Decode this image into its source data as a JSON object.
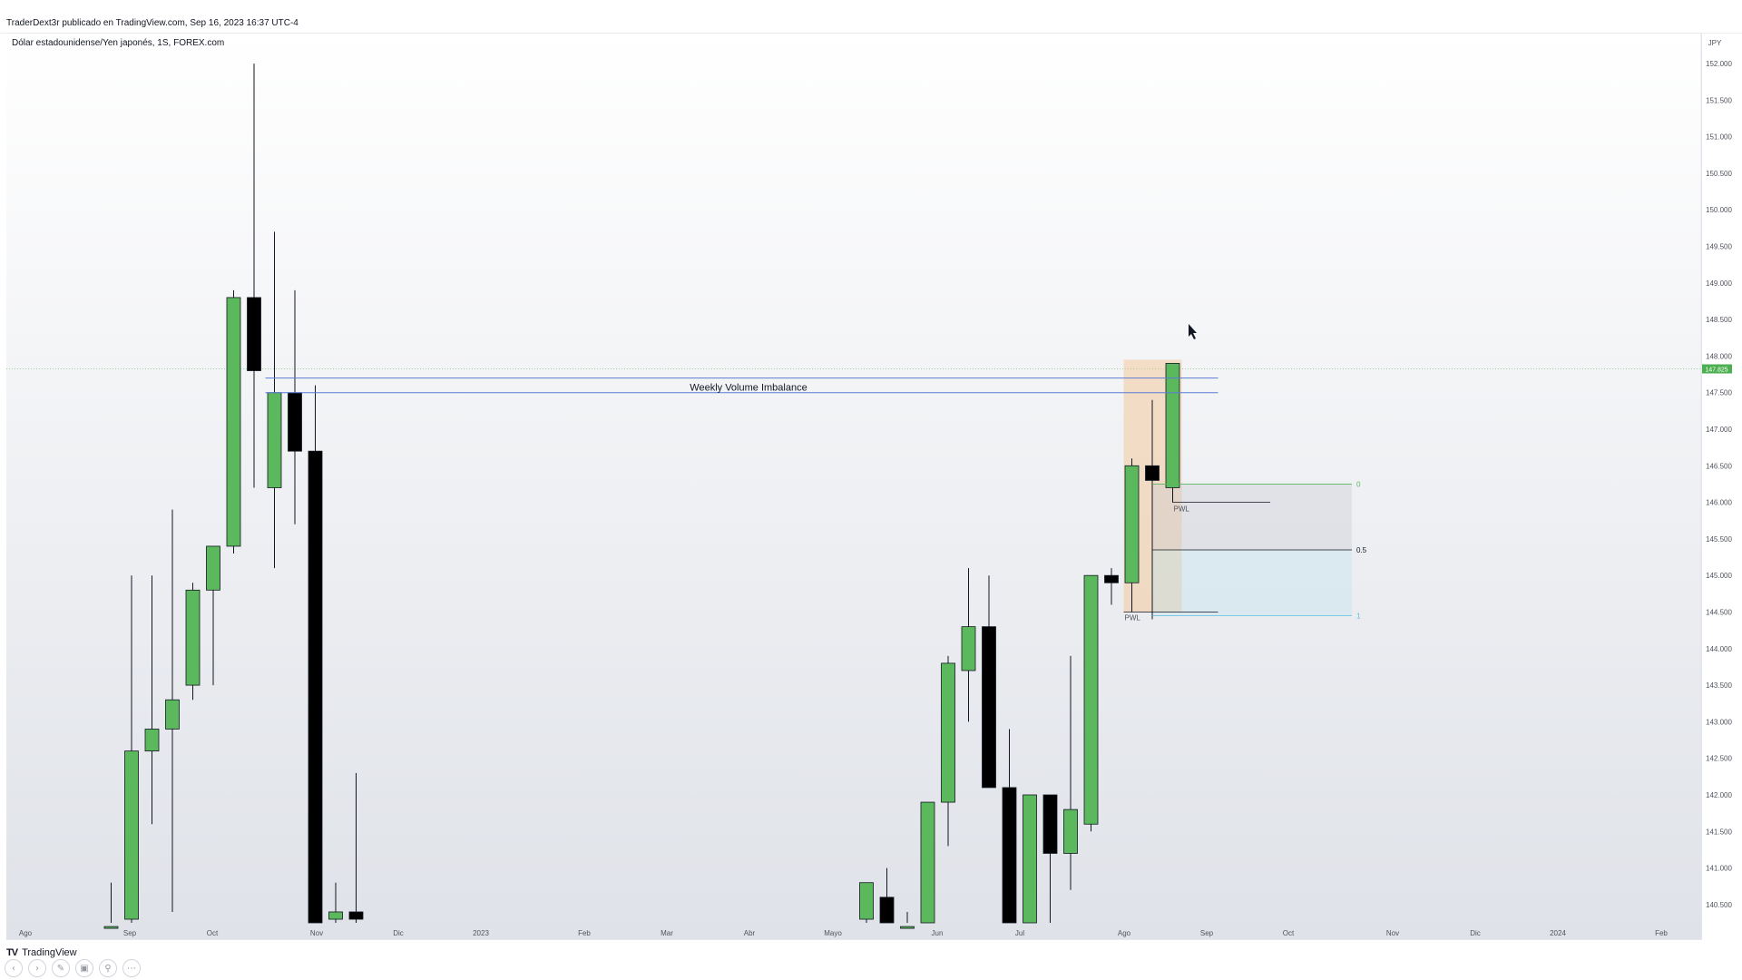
{
  "header": {
    "publish_info": "TraderDext3r publicado en TradingView.com, Sep 16, 2023 16:37 UTC-4"
  },
  "chart_data": {
    "type": "candlestick",
    "symbol_title": "Dólar estadounidense/Yen japonés, 1S, FOREX.com",
    "currency": "JPY",
    "ylim": [
      140.2,
      152.8
    ],
    "y_ticks": [
      140.5,
      141.0,
      141.5,
      142.0,
      142.5,
      143.0,
      143.5,
      144.0,
      144.5,
      145.0,
      145.5,
      146.0,
      146.5,
      147.0,
      147.5,
      148.0,
      148.5,
      149.0,
      149.5,
      150.0,
      150.5,
      151.0,
      151.5,
      152.0
    ],
    "y_tick_labels": [
      "140.500",
      "141.000",
      "141.500",
      "142.000",
      "142.500",
      "143.000",
      "143.500",
      "144.000",
      "144.500",
      "145.000",
      "145.500",
      "146.000",
      "146.500",
      "147.000",
      "147.500",
      "148.000",
      "148.500",
      "149.000",
      "149.500",
      "150.000",
      "150.500",
      "151.000",
      "151.500",
      "152.000"
    ],
    "x_ticks": [
      "Ago",
      "Sep",
      "Oct",
      "Nov",
      "Dic",
      "2023",
      "Feb",
      "Mar",
      "Abr",
      "Mayo",
      "Jun",
      "Jul",
      "Ago",
      "Sep",
      "Oct",
      "Nov",
      "Dic",
      "2024",
      "Feb"
    ],
    "last_price": 147.825,
    "last_price_label": "147.825",
    "candles": [
      {
        "week": 6,
        "open": 140.0,
        "high": 140.8,
        "low": 139.5,
        "close": 140.2
      },
      {
        "week": 7,
        "open": 140.3,
        "high": 145.0,
        "low": 139.8,
        "close": 142.6
      },
      {
        "week": 8,
        "open": 142.6,
        "high": 145.0,
        "low": 141.6,
        "close": 142.9
      },
      {
        "week": 9,
        "open": 142.9,
        "high": 145.9,
        "low": 140.4,
        "close": 143.3
      },
      {
        "week": 10,
        "open": 143.5,
        "high": 144.9,
        "low": 143.3,
        "close": 144.8
      },
      {
        "week": 11,
        "open": 144.8,
        "high": 145.4,
        "low": 143.5,
        "close": 145.4
      },
      {
        "week": 12,
        "open": 145.4,
        "high": 148.9,
        "low": 145.3,
        "close": 148.8
      },
      {
        "week": 13,
        "open": 148.8,
        "high": 152.0,
        "low": 146.2,
        "close": 147.8
      },
      {
        "week": 14,
        "open": 146.2,
        "high": 149.7,
        "low": 145.1,
        "close": 147.5
      },
      {
        "week": 15,
        "open": 147.5,
        "high": 148.9,
        "low": 145.7,
        "close": 146.7
      },
      {
        "week": 16,
        "open": 146.7,
        "high": 147.6,
        "low": 139.0,
        "close": 139.0
      },
      {
        "week": 17,
        "open": 140.3,
        "high": 140.8,
        "low": 140.2,
        "close": 140.4
      },
      {
        "week": 18,
        "open": 140.4,
        "high": 142.3,
        "low": 140.2,
        "close": 140.3
      },
      {
        "week": 43,
        "open": 140.3,
        "high": 140.8,
        "low": 140.2,
        "close": 140.8
      },
      {
        "week": 44,
        "open": 140.6,
        "high": 141.0,
        "low": 140.2,
        "close": 140.2
      },
      {
        "week": 45,
        "open": 140.2,
        "high": 140.4,
        "low": 140.2,
        "close": 140.2
      },
      {
        "week": 46,
        "open": 140.2,
        "high": 141.9,
        "low": 140.2,
        "close": 141.9
      },
      {
        "week": 47,
        "open": 141.9,
        "high": 143.9,
        "low": 141.3,
        "close": 143.8
      },
      {
        "week": 48,
        "open": 143.7,
        "high": 145.1,
        "low": 143.0,
        "close": 144.3
      },
      {
        "week": 49,
        "open": 144.3,
        "high": 145.0,
        "low": 142.1,
        "close": 142.1
      },
      {
        "week": 50,
        "open": 142.1,
        "high": 142.9,
        "low": 140.2,
        "close": 140.2
      },
      {
        "week": 51,
        "open": 140.2,
        "high": 142.0,
        "low": 140.2,
        "close": 142.0
      },
      {
        "week": 52,
        "open": 142.0,
        "high": 142.0,
        "low": 140.2,
        "close": 141.2
      },
      {
        "week": 53,
        "open": 141.2,
        "high": 143.9,
        "low": 140.7,
        "close": 141.8
      },
      {
        "week": 54,
        "open": 141.6,
        "high": 145.0,
        "low": 141.5,
        "close": 145.0
      },
      {
        "week": 55,
        "open": 145.0,
        "high": 145.1,
        "low": 144.6,
        "close": 144.9
      },
      {
        "week": 56,
        "open": 144.9,
        "high": 146.6,
        "low": 144.5,
        "close": 146.5
      },
      {
        "week": 57,
        "open": 146.5,
        "high": 147.4,
        "low": 144.4,
        "close": 146.3
      },
      {
        "week": 58,
        "open": 146.2,
        "high": 147.9,
        "low": 146.0,
        "close": 147.9
      }
    ],
    "annotations": {
      "imbalance_label": "Weekly Volume Imbalance",
      "imbalance_top": 147.7,
      "imbalance_bottom": 147.5,
      "pwl_label_upper": "PWL",
      "pwl_label_lower": "PWL",
      "pwl_upper_price": 146.0,
      "pwl_lower_price": 144.5,
      "fib_level_0": "0",
      "fib_level_05": "0.5",
      "fib_level_1": "1",
      "fib_top": 146.25,
      "fib_mid": 145.35,
      "fib_bottom": 144.45,
      "range_box_top": 147.95,
      "range_box_bottom": 144.5
    }
  },
  "footer": {
    "brand": "TradingView",
    "controls": [
      "prev-icon",
      "next-icon",
      "draw-icon",
      "layout-icon",
      "zoom-icon",
      "more-icon"
    ]
  }
}
